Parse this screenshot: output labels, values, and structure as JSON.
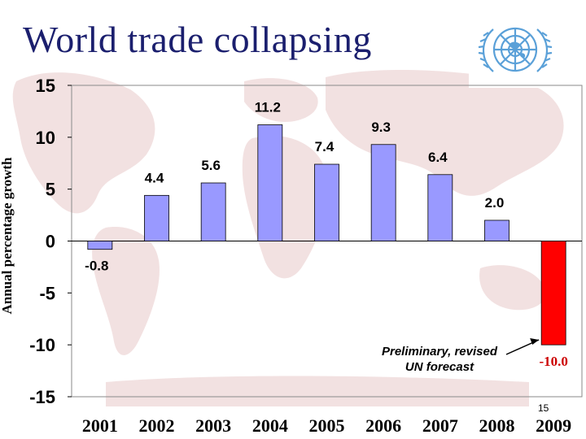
{
  "slide": {
    "title": "World trade collapsing",
    "page_number": "15",
    "emblem": "united-nations-emblem"
  },
  "chart_data": {
    "type": "bar",
    "title": "",
    "xlabel": "",
    "ylabel": "Annual percentage growth",
    "categories": [
      "2001",
      "2002",
      "2003",
      "2004",
      "2005",
      "2006",
      "2007",
      "2008",
      "2009"
    ],
    "values": [
      -0.8,
      4.4,
      5.6,
      11.2,
      7.4,
      9.3,
      6.4,
      2.0,
      -10.0
    ],
    "value_labels": [
      "-0.8",
      "4.4",
      "5.6",
      "11.2",
      "7.4",
      "9.3",
      "6.4",
      "2.0",
      "-10.0"
    ],
    "ylim": [
      -15,
      15
    ],
    "yticks": [
      -15,
      -10,
      -5,
      0,
      5,
      10,
      15
    ],
    "grid": false,
    "colors": {
      "bar": "#9999ff",
      "highlight_bar": "#ff0000",
      "highlight_label": "#cc0000",
      "bar_edge": "#000000"
    },
    "highlight_index": 8,
    "annotation": {
      "line1": "Preliminary, revised",
      "line2": "UN forecast",
      "target_index": 8
    }
  }
}
